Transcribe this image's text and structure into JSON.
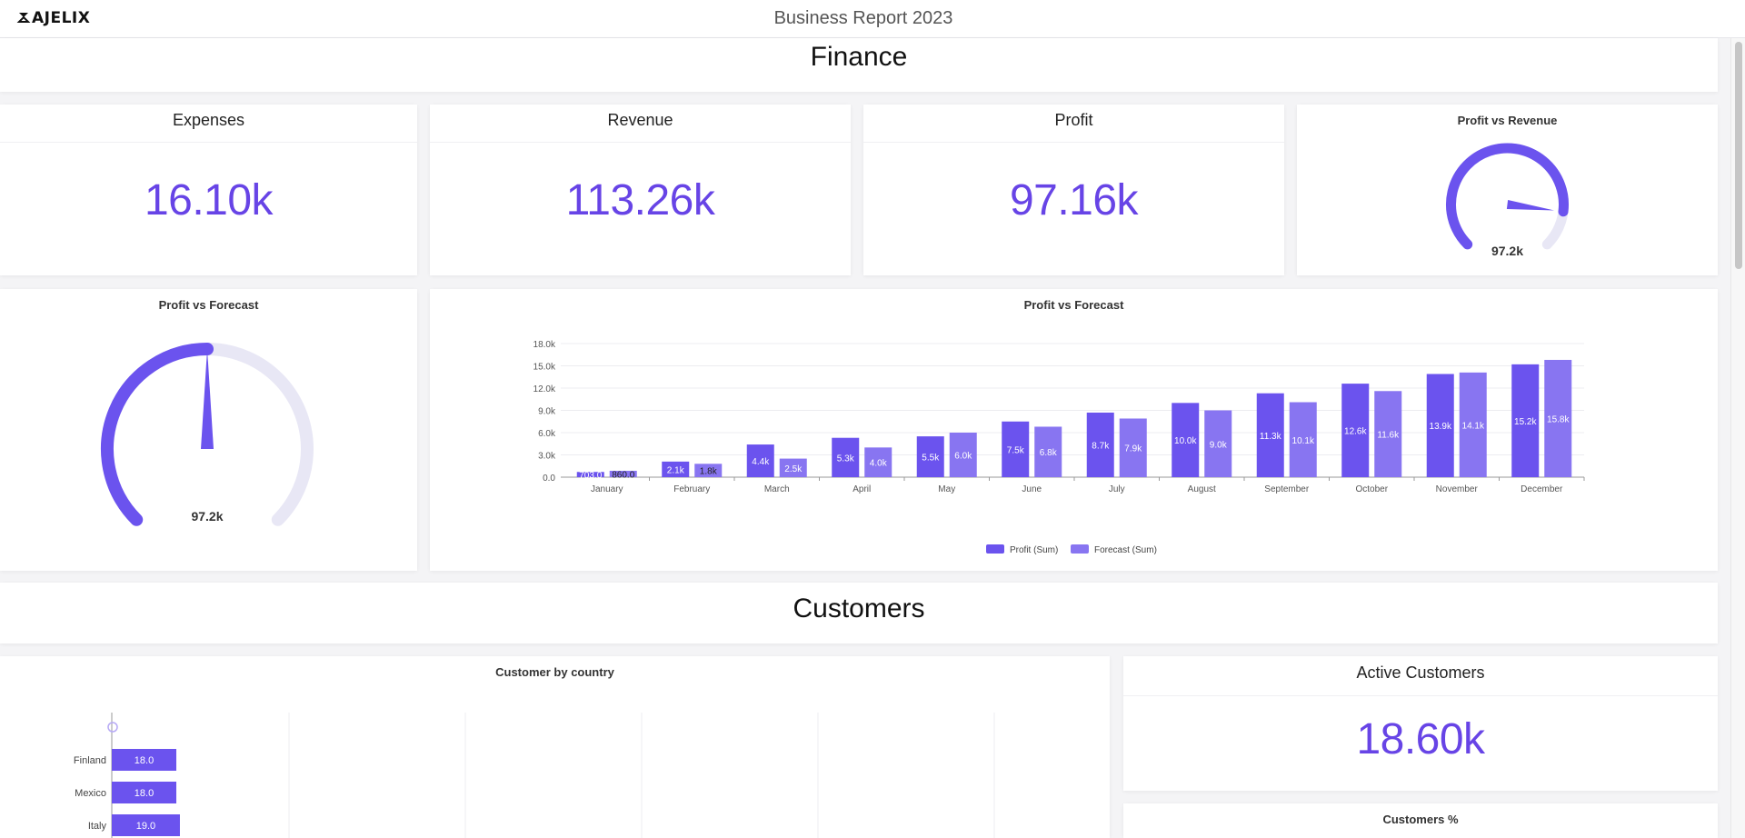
{
  "header": {
    "logo": "AJELIX",
    "title": "Business Report 2023"
  },
  "colors": {
    "accent": "#6744e6",
    "profit_bar": "#6b53ee",
    "forecast_bar": "#8875f1",
    "gauge_track": "#e8e7f5"
  },
  "finance": {
    "section_title": "Finance",
    "kpis": [
      {
        "title": "Expenses",
        "value": "16.10k"
      },
      {
        "title": "Revenue",
        "value": "113.26k"
      },
      {
        "title": "Profit",
        "value": "97.16k"
      }
    ],
    "gauge_small": {
      "title": "Profit vs Revenue",
      "value_label": "97.2k",
      "fraction": 0.86
    },
    "gauge_large": {
      "title": "Profit vs Forecast",
      "value_label": "97.2k",
      "fraction": 0.5
    }
  },
  "chart_data": [
    {
      "type": "bar",
      "title": "Profit vs Forecast",
      "categories": [
        "January",
        "February",
        "March",
        "April",
        "May",
        "June",
        "July",
        "August",
        "September",
        "October",
        "November",
        "December"
      ],
      "series": [
        {
          "name": "Profit (Sum)",
          "values": [
            703.0,
            2100,
            4400,
            5300,
            5500,
            7500,
            8700,
            10000,
            11300,
            12600,
            13900,
            15200
          ],
          "labels": [
            "703.0",
            "2.1k",
            "4.4k",
            "5.3k",
            "5.5k",
            "7.5k",
            "8.7k",
            "10.0k",
            "11.3k",
            "12.6k",
            "13.9k",
            "15.2k"
          ]
        },
        {
          "name": "Forecast (Sum)",
          "values": [
            860.0,
            1800,
            2500,
            4000,
            6000,
            6800,
            7900,
            9000,
            10100,
            11600,
            14100,
            15800
          ],
          "labels": [
            "860.0",
            "1.8k",
            "2.5k",
            "4.0k",
            "6.0k",
            "6.8k",
            "7.9k",
            "9.0k",
            "10.1k",
            "11.6k",
            "14.1k",
            "15.8k"
          ]
        }
      ],
      "yticks": [
        "0.0",
        "3.0k",
        "6.0k",
        "9.0k",
        "12.0k",
        "15.0k",
        "18.0k"
      ],
      "ylim": [
        0,
        18000
      ],
      "grid": true,
      "legend": "bottom"
    },
    {
      "type": "bar",
      "orientation": "horizontal",
      "title": "Customer by country",
      "categories": [
        "Finland",
        "Mexico",
        "Italy"
      ],
      "values": [
        18.0,
        18.0,
        19.0
      ],
      "labels": [
        "18.0",
        "18.0",
        "19.0"
      ]
    }
  ],
  "customers": {
    "section_title": "Customers",
    "active": {
      "title": "Active Customers",
      "value": "18.60k"
    },
    "percent_title": "Customers %"
  }
}
